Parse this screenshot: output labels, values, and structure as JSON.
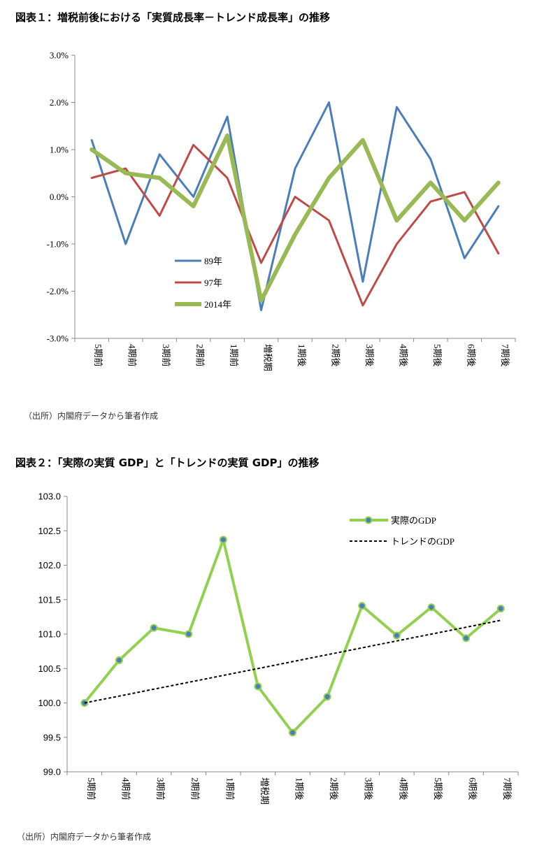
{
  "heading1": "図表１：増税前後における「実質成長率－トレンド成長率」の推移",
  "heading2": "図表２：「実際の実質 GDP」と「トレンドの実質 GDP」の推移",
  "source1": "（出所）内閣府データから筆者作成",
  "source2": "（出所）内閣府データから筆者作成",
  "chart_data": [
    {
      "type": "line",
      "title": "図表１：増税前後における「実質成長率－トレンド成長率」の推移",
      "categories": [
        "5期前",
        "4期前",
        "3期前",
        "2期前",
        "1期前",
        "増税期",
        "1期後",
        "2期後",
        "3期後",
        "4期後",
        "5期後",
        "6期後",
        "7期後"
      ],
      "ylim": [
        -3.0,
        3.0
      ],
      "yticks": [
        "-3.0%",
        "-2.0%",
        "-1.0%",
        "0.0%",
        "1.0%",
        "2.0%",
        "3.0%"
      ],
      "ytick_values": [
        -3,
        -2,
        -1,
        0,
        1,
        2,
        3
      ],
      "legend_position": "center",
      "series": [
        {
          "name": "89年",
          "color": "#4a7ebb",
          "values": [
            1.2,
            -1.0,
            0.9,
            0.0,
            1.7,
            -2.4,
            0.6,
            2.0,
            -1.8,
            1.9,
            0.8,
            -1.3,
            -0.2
          ]
        },
        {
          "name": "97年",
          "color": "#be4b48",
          "values": [
            0.4,
            0.6,
            -0.4,
            1.1,
            0.4,
            -1.4,
            0.0,
            -0.5,
            -2.3,
            -1.0,
            -0.1,
            0.1,
            -1.2
          ]
        },
        {
          "name": "2014年",
          "color": "#98b954",
          "values": [
            1.0,
            0.5,
            0.4,
            -0.2,
            1.3,
            -2.2,
            -0.8,
            0.4,
            1.2,
            -0.5,
            0.3,
            -0.5,
            0.3
          ]
        }
      ]
    },
    {
      "type": "line",
      "title": "図表２：「実際の実質 GDP」と「トレンドの実質 GDP」の推移",
      "categories": [
        "5期前",
        "4期前",
        "3期前",
        "2期前",
        "1期前",
        "増税期",
        "1期後",
        "2期後",
        "3期後",
        "4期後",
        "5期後",
        "6期後",
        "7期後"
      ],
      "ylim": [
        99.0,
        103.0
      ],
      "yticks": [
        "99.0",
        "99.5",
        "100.0",
        "100.5",
        "101.0",
        "101.5",
        "102.0",
        "102.5",
        "103.0"
      ],
      "ytick_values": [
        99.0,
        99.5,
        100.0,
        100.5,
        101.0,
        101.5,
        102.0,
        102.5,
        103.0
      ],
      "legend_position": "top-right",
      "series": [
        {
          "name": "実際のGDP",
          "color": "#92d050",
          "marker_color": "#4a7ebb",
          "values": [
            100.0,
            100.62,
            101.09,
            101.0,
            102.37,
            100.24,
            99.57,
            100.09,
            101.41,
            100.98,
            101.39,
            100.94,
            101.37
          ]
        },
        {
          "name": "トレンドのGDP",
          "color": "#000000",
          "dashed": true,
          "values": [
            100.0,
            100.1,
            100.2,
            100.3,
            100.4,
            100.5,
            100.6,
            100.7,
            100.8,
            100.9,
            101.0,
            101.1,
            101.2
          ]
        }
      ]
    }
  ]
}
